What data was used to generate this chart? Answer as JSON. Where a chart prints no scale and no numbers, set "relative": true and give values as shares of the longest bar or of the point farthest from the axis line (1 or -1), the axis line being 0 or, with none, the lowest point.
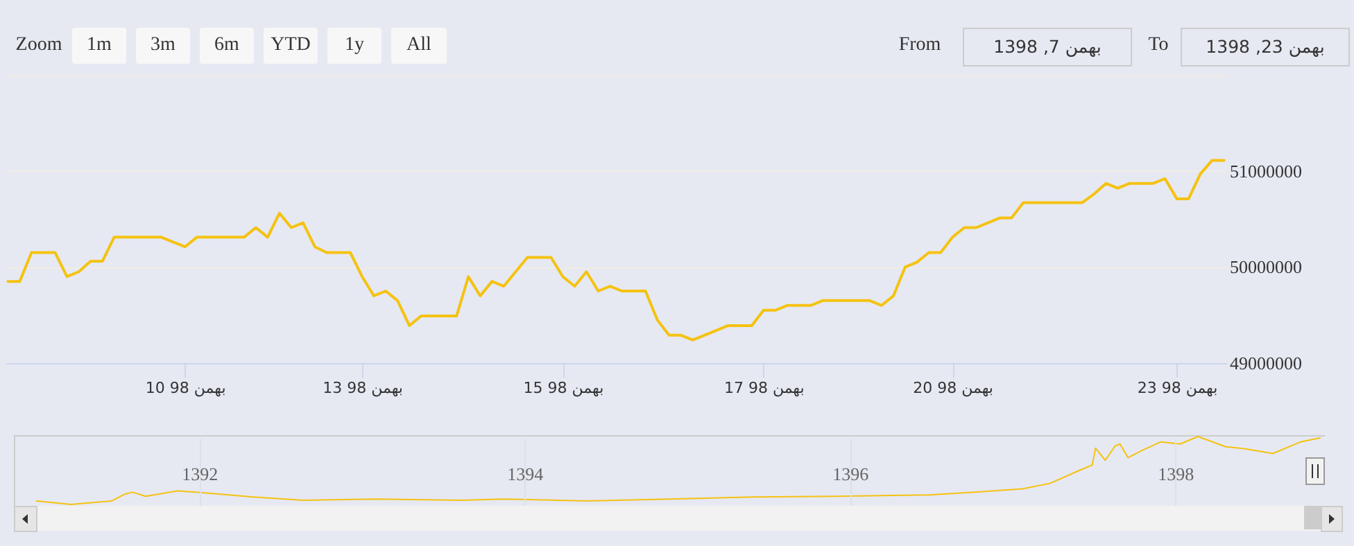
{
  "chart_data": [
    {
      "type": "line",
      "categories": [
        null,
        null,
        null,
        null,
        null,
        null,
        null,
        null,
        null,
        null,
        null,
        null,
        null,
        null,
        null,
        "10 بهمن 98",
        null,
        null,
        null,
        null,
        null,
        null,
        null,
        null,
        null,
        null,
        null,
        null,
        null,
        null,
        "13 بهمن 98",
        null,
        null,
        null,
        null,
        null,
        null,
        null,
        null,
        null,
        null,
        null,
        null,
        null,
        null,
        null,
        null,
        "15 بهمن 98",
        null,
        null,
        null,
        null,
        null,
        null,
        null,
        null,
        null,
        null,
        null,
        null,
        null,
        null,
        null,
        null,
        "17 بهمن 98",
        null,
        null,
        null,
        null,
        null,
        null,
        null,
        null,
        null,
        null,
        null,
        null,
        null,
        null,
        null,
        "20 بهمن 98",
        null,
        null,
        null,
        null,
        null,
        null,
        null,
        null,
        null,
        null,
        null,
        null,
        null,
        null,
        null,
        null,
        null,
        null,
        "23 بهمن 98",
        null,
        null,
        null,
        null
      ],
      "series": [
        {
          "color": "#f5c211",
          "values": [
            49850000,
            49850000,
            50150000,
            50150000,
            50150000,
            49900000,
            49950000,
            50060000,
            50060000,
            50310000,
            50310000,
            50310000,
            50310000,
            50310000,
            50260000,
            50210000,
            50310000,
            50310000,
            50310000,
            50310000,
            50310000,
            50410000,
            50310000,
            50560000,
            50410000,
            50460000,
            50210000,
            50150000,
            50150000,
            50150000,
            49900000,
            49700000,
            49750000,
            49650000,
            49390000,
            49490000,
            49490000,
            49490000,
            49490000,
            49900000,
            49700000,
            49850000,
            49800000,
            49950000,
            50100000,
            50100000,
            50100000,
            49900000,
            49800000,
            49950000,
            49750000,
            49800000,
            49750000,
            49750000,
            49750000,
            49450000,
            49290000,
            49290000,
            49240000,
            49290000,
            49340000,
            49390000,
            49390000,
            49390000,
            49550000,
            49550000,
            49600000,
            49600000,
            49600000,
            49650000,
            49650000,
            49650000,
            49650000,
            49650000,
            49600000,
            49700000,
            50000000,
            50050000,
            50150000,
            50150000,
            50310000,
            50410000,
            50410000,
            50460000,
            50510000,
            50510000,
            50670000,
            50670000,
            50670000,
            50670000,
            50670000,
            50670000,
            50760000,
            50870000,
            50820000,
            50870000,
            50870000,
            50870000,
            50920000,
            50710000,
            50710000,
            50970000,
            51110000,
            51110000
          ]
        }
      ],
      "ylim": [
        49000000,
        52000000
      ],
      "yticks": [
        49000000,
        50000000,
        51000000,
        {
          "value": 52000000,
          "label": null
        }
      ],
      "grid": "y",
      "annotations": [
        "Zoom",
        "1m",
        "3m",
        "6m",
        "YTD",
        "1y",
        "All",
        "From",
        "بهمن 7, 1398",
        "To",
        "بهمن 23, 1398"
      ]
    },
    {
      "type": "line",
      "relative": true,
      "x": [
        1391.0,
        1391.21,
        1391.46,
        1391.54,
        1391.59,
        1391.67,
        1391.87,
        1392.03,
        1392.33,
        1392.64,
        1393.1,
        1393.61,
        1393.87,
        1394.38,
        1394.89,
        1395.41,
        1395.92,
        1396.49,
        1396.77,
        1397.06,
        1397.23,
        1397.4,
        1397.49,
        1397.51,
        1397.57,
        1397.63,
        1397.66,
        1397.71,
        1397.8,
        1397.91,
        1398.03,
        1398.14,
        1398.31,
        1398.43,
        1398.6,
        1398.77,
        1398.89
      ],
      "series": [
        {
          "color": "#f5c211",
          "values": [
            0.05,
            0,
            0.05,
            0.15,
            0.18,
            0.12,
            0.2,
            0.17,
            0.11,
            0.06,
            0.08,
            0.06,
            0.08,
            0.05,
            0.08,
            0.11,
            0.12,
            0.14,
            0.18,
            0.23,
            0.31,
            0.49,
            0.58,
            0.83,
            0.65,
            0.86,
            0.89,
            0.69,
            0.8,
            0.92,
            0.89,
            1,
            0.85,
            0.82,
            0.75,
            0.92,
            0.98
          ]
        }
      ],
      "xlim": [
        1390.86,
        1398.92
      ],
      "xticks": [
        1392,
        1394,
        1396,
        1398
      ],
      "grid": "x"
    }
  ]
}
